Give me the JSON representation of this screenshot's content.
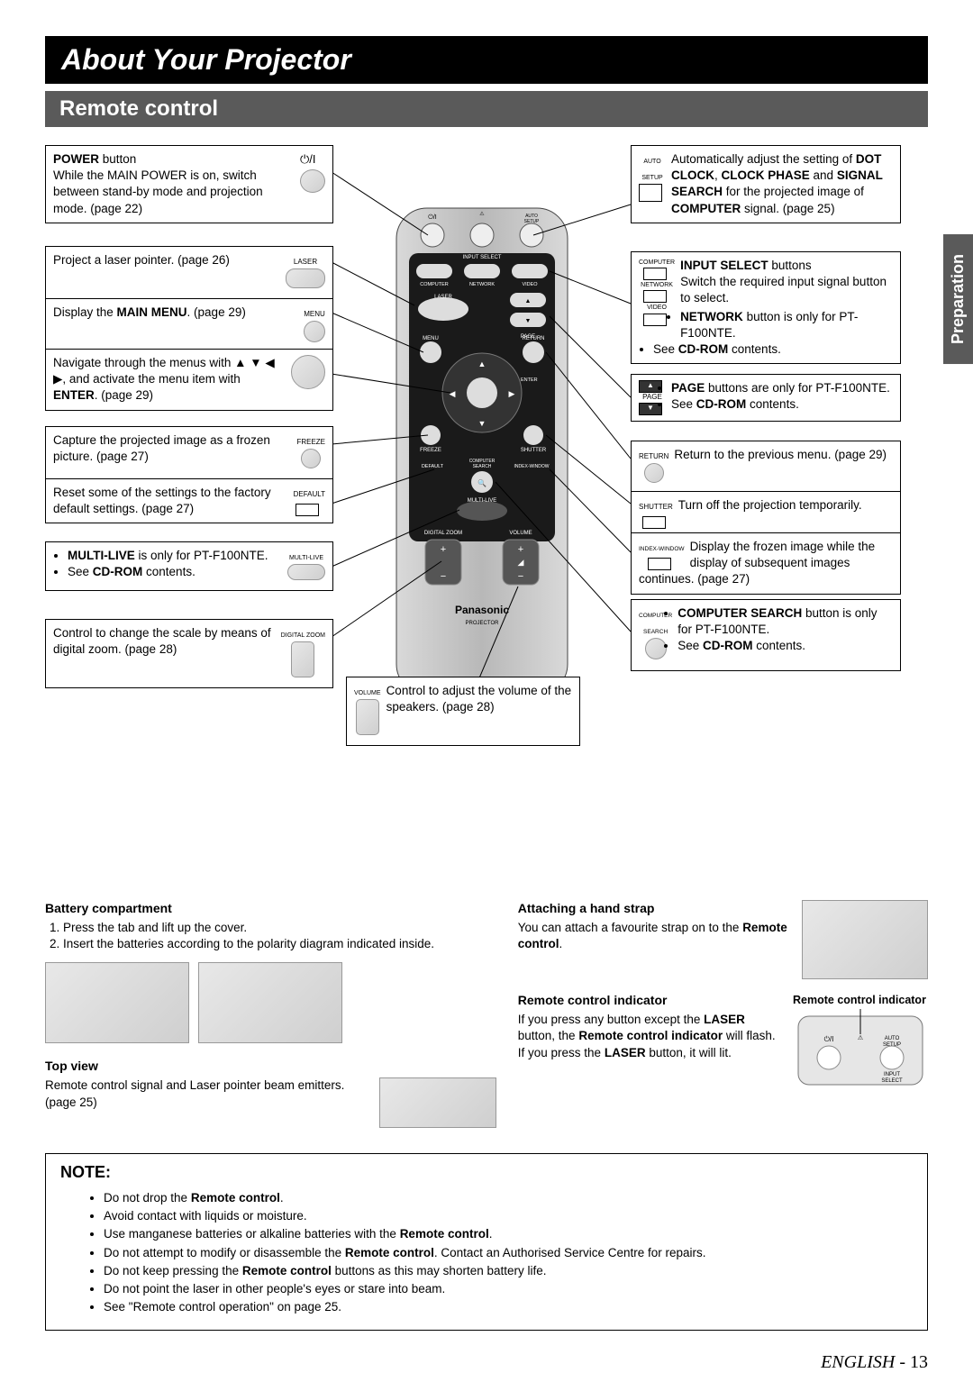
{
  "title": "About Your Projector",
  "section": "Remote control",
  "side_tab": "Preparation",
  "footer_lang": "ENGLISH",
  "footer_page": "- 13",
  "left": {
    "power": {
      "label": "POWER",
      "suffix": " button",
      "body": "While the MAIN POWER is on, switch between stand-by mode and projection mode. (page 22)"
    },
    "laser": {
      "label": "LASER",
      "body": "Project a laser pointer. (page 26)"
    },
    "menu": {
      "label": "MENU",
      "body_pre": "Display the ",
      "body_bold": "MAIN MENU",
      "body_post": ". (page 29)"
    },
    "nav": {
      "body_pre": "Navigate through the menus with ▲ ▼ ◀ ▶, and activate the menu item with ",
      "body_bold": "ENTER",
      "body_post": ". (page 29)"
    },
    "freeze": {
      "label": "FREEZE",
      "body": "Capture the projected image as a frozen picture. (page 27)"
    },
    "default": {
      "label": "DEFAULT",
      "body": "Reset some of the settings to the factory default settings. (page 27)"
    },
    "multilive": {
      "label": "MULTI-LIVE",
      "item1_bold": "MULTI-LIVE",
      "item1_rest": " is only for PT-F100NTE.",
      "item2_pre": "See ",
      "item2_bold": "CD-ROM",
      "item2_post": " contents."
    },
    "dzoom": {
      "label": "DIGITAL ZOOM",
      "body": "Control to change the scale by means of digital zoom. (page 28)"
    }
  },
  "center": {
    "volume": {
      "label": "VOLUME",
      "body": "Control to adjust the volume of the speakers. (page 28)"
    }
  },
  "right": {
    "autosetup": {
      "label": "AUTO SETUP",
      "body_pre": "Automatically adjust the setting of ",
      "b1": "DOT CLOCK",
      "sep1": ", ",
      "b2": "CLOCK PHASE",
      "sep2": " and ",
      "b3": "SIGNAL SEARCH",
      "body_mid": " for the projected image of ",
      "b4": "COMPUTER",
      "body_post": " signal. (page 25)"
    },
    "inputsel": {
      "labels": "COMPUTER / NETWORK / VIDEO",
      "title_bold": "INPUT SELECT",
      "title_rest": " buttons",
      "line1": "Switch the required input signal button to select.",
      "net_bold": "NETWORK",
      "net_rest": " button is only for PT-F100NTE.",
      "cd_pre": "See ",
      "cd_bold": "CD-ROM",
      "cd_post": " contents."
    },
    "page": {
      "label": "PAGE",
      "b1": "PAGE",
      "b1_rest": " buttons are only for PT-F100NTE.",
      "cd_pre": "See ",
      "cd_bold": "CD-ROM",
      "cd_post": " contents."
    },
    "return": {
      "label": "RETURN",
      "body": "Return to the previous menu. (page 29)"
    },
    "shutter": {
      "label": "SHUTTER",
      "body": "Turn off the projection temporarily."
    },
    "indexwin": {
      "label": "INDEX-WINDOW",
      "body": "Display the frozen image while the display of subsequent images continues. (page 27)"
    },
    "csearch": {
      "label": "COMPUTER SEARCH",
      "b1": "COMPUTER SEARCH",
      "line1": "button is only for PT-F100NTE.",
      "cd_pre": "See ",
      "cd_bold": "CD-ROM",
      "cd_post": " contents."
    }
  },
  "bottom": {
    "battery": {
      "title": "Battery compartment",
      "l1": "Press the tab and lift up the cover.",
      "l2": "Insert the batteries according to the polarity diagram indicated inside."
    },
    "topview": {
      "title": "Top view",
      "body": "Remote control signal and Laser pointer beam emitters. (page 25)"
    },
    "strap": {
      "title": "Attaching a hand strap",
      "body_pre": "You can attach a favourite strap on to the ",
      "b": "Remote control",
      "body_post": "."
    },
    "indicator": {
      "title": "Remote control indicator",
      "body_pre": "If you press any button except the ",
      "b1": "LASER",
      "mid1": " button, the ",
      "b2": "Remote control indicator",
      "mid2": " will flash. If you press the ",
      "b3": "LASER",
      "body_post": " button, it will lit."
    },
    "indicator_caption": "Remote control indicator"
  },
  "note": {
    "title": "NOTE:",
    "items": [
      "Do not drop the |Remote control|.",
      "Avoid contact with liquids or moisture.",
      "Use manganese batteries or alkaline batteries with the |Remote control|.",
      "Do not attempt to modify or disassemble the |Remote control|. Contact an Authorised Service Centre for repairs.",
      "Do not keep pressing the |Remote control| buttons as this may shorten battery life.",
      "Do not point the laser in other people's eyes or stare into beam.",
      "See \"Remote control operation\" on page 25."
    ]
  },
  "remote_labels": {
    "brand": "Panasonic",
    "sub": "PROJECTOR",
    "top": [
      "⏻/I",
      "AUTO SETUP",
      "INPUT SELECT"
    ],
    "row2": [
      "COMPUTER",
      "NETWORK",
      "VIDEO"
    ],
    "laser": "LASER",
    "page": "PAGE",
    "menu": "MENU",
    "return": "RETURN",
    "enter": "ENTER",
    "freeze": "FREEZE",
    "shutter": "SHUTTER",
    "row_cs": [
      "DEFAULT",
      "COMPUTER SEARCH",
      "INDEX-WINDOW"
    ],
    "multilive": "MULTI-LIVE",
    "dz": "DIGITAL ZOOM",
    "vol": "VOLUME"
  }
}
